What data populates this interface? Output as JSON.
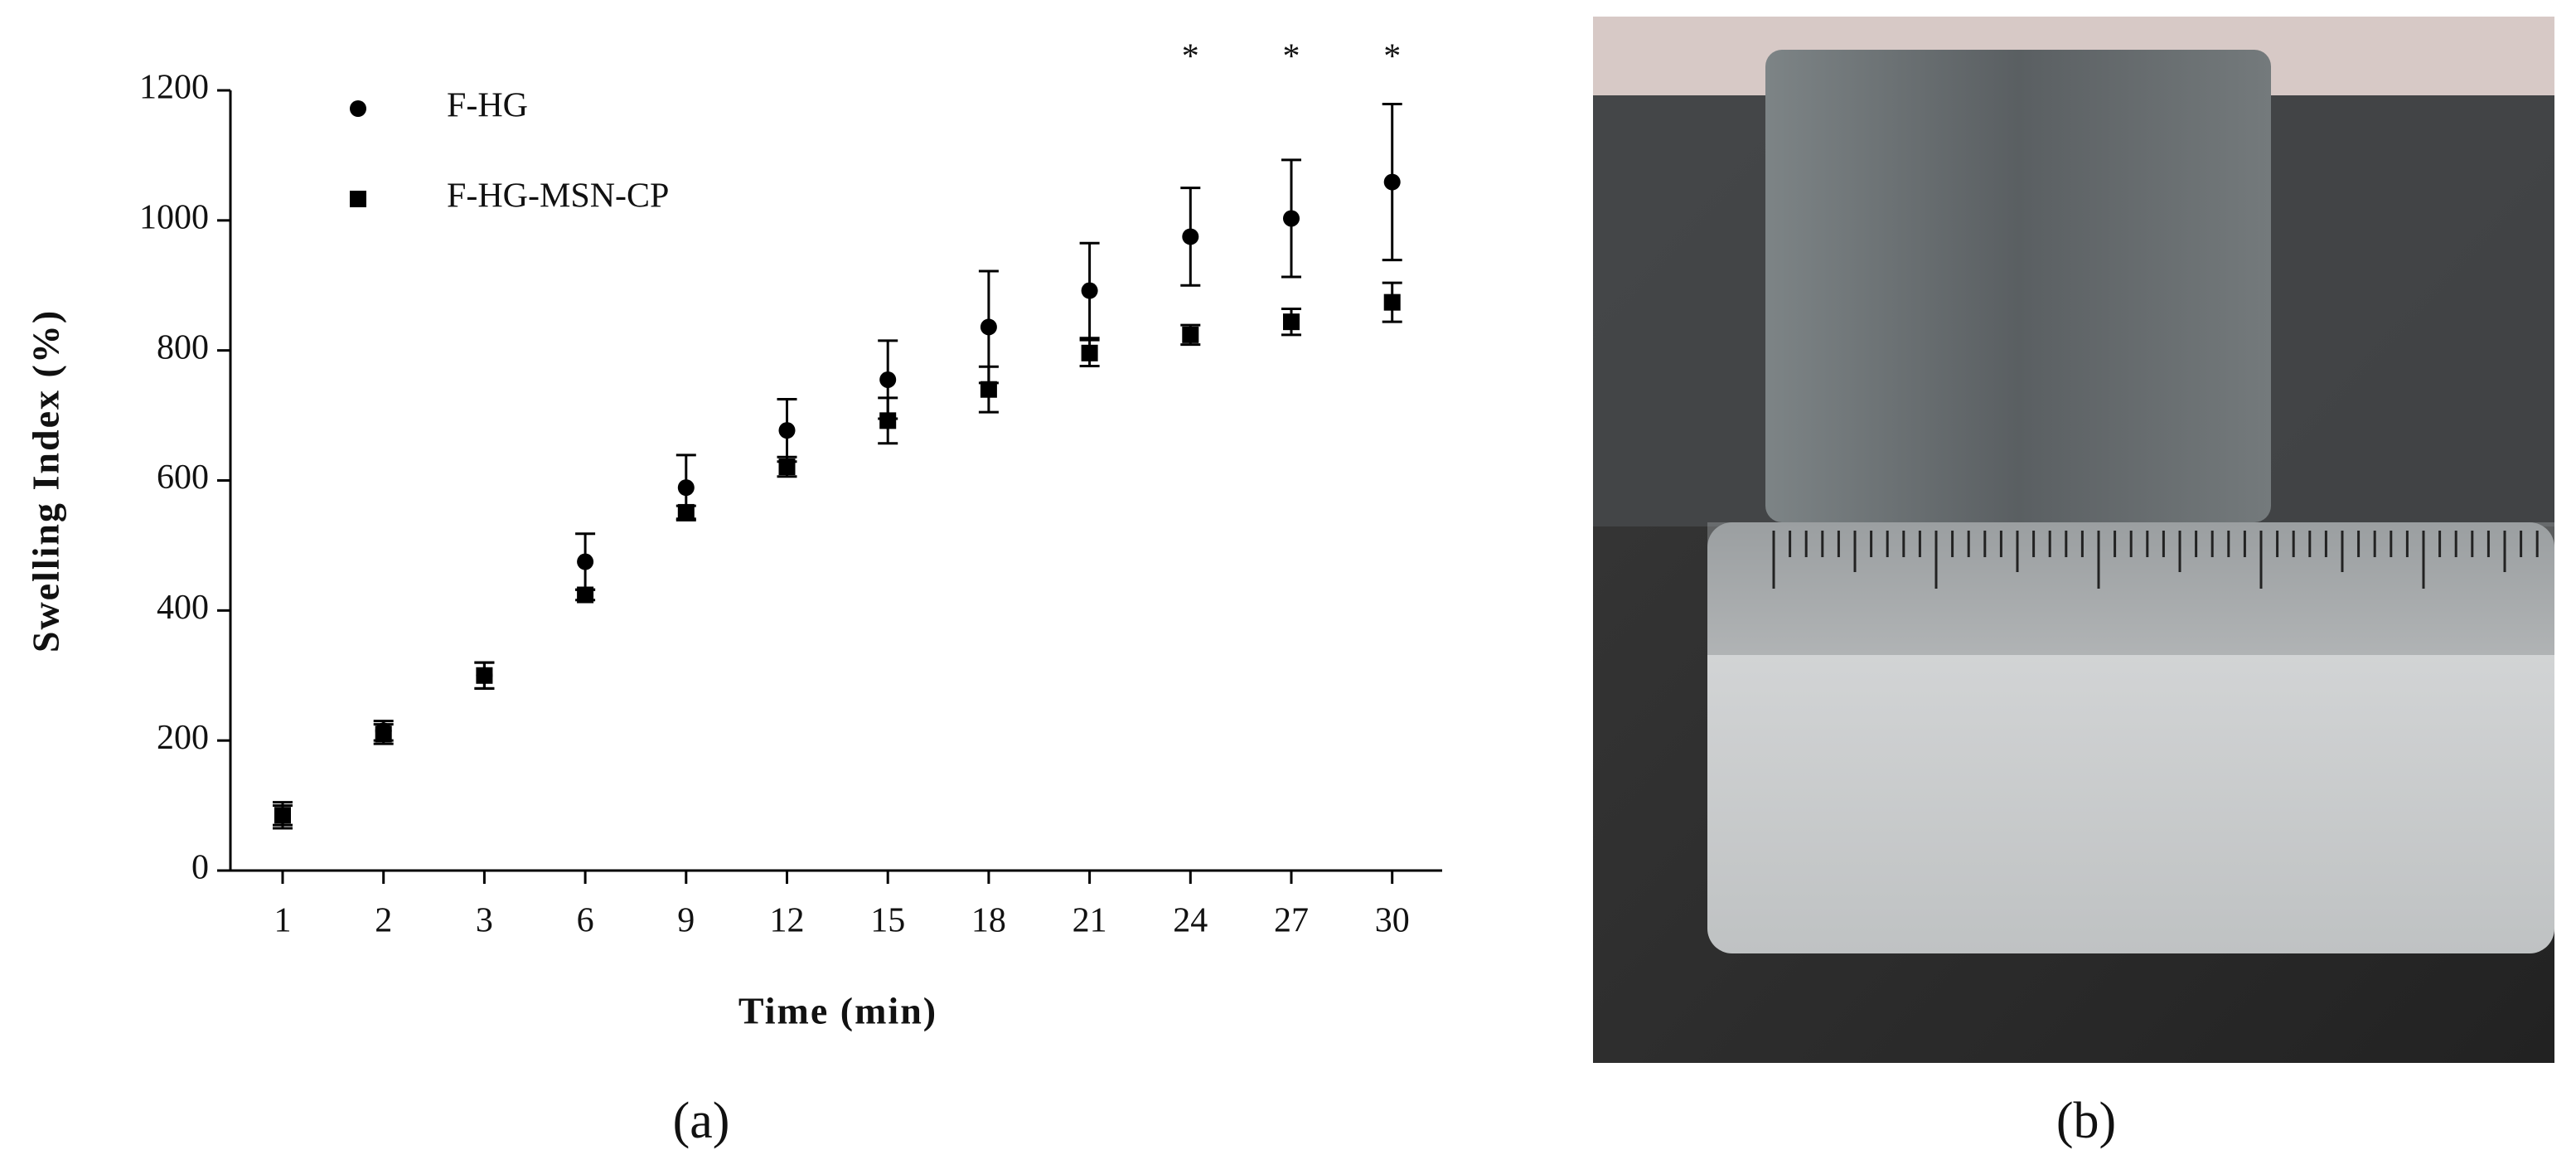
{
  "chart_data": {
    "type": "scatter",
    "x_label": "Time (min)",
    "y_label": "Swelling Index (%)",
    "categories": [
      "1",
      "2",
      "3",
      "6",
      "9",
      "12",
      "15",
      "18",
      "21",
      "24",
      "27",
      "30"
    ],
    "series": [
      {
        "name": "F-HG",
        "color": "#000000",
        "marker": "circle",
        "values": [
          85,
          215,
          300,
          475,
          589,
          677,
          755,
          836,
          892,
          975,
          1003,
          1059
        ],
        "errors": [
          15,
          15,
          20,
          43,
          50,
          48,
          60,
          86,
          73,
          75,
          90,
          120
        ]
      },
      {
        "name": "F-HG-MSN-CP",
        "color": "#000000",
        "marker": "square",
        "values": [
          85,
          210,
          300,
          424,
          551,
          621,
          692,
          740,
          796,
          824,
          844,
          874
        ],
        "errors": [
          20,
          15,
          20,
          8,
          10,
          15,
          35,
          35,
          20,
          15,
          20,
          30
        ]
      }
    ],
    "ylim": [
      0,
      1200
    ],
    "yticks": [
      0,
      200,
      400,
      600,
      800,
      1000,
      1200
    ],
    "annotations": [
      {
        "text": "*",
        "category": "24"
      },
      {
        "text": "*",
        "category": "27"
      },
      {
        "text": "*",
        "category": "30"
      }
    ],
    "legend_position": "upper left"
  },
  "panel_labels": [
    "(a)",
    "(b)"
  ]
}
